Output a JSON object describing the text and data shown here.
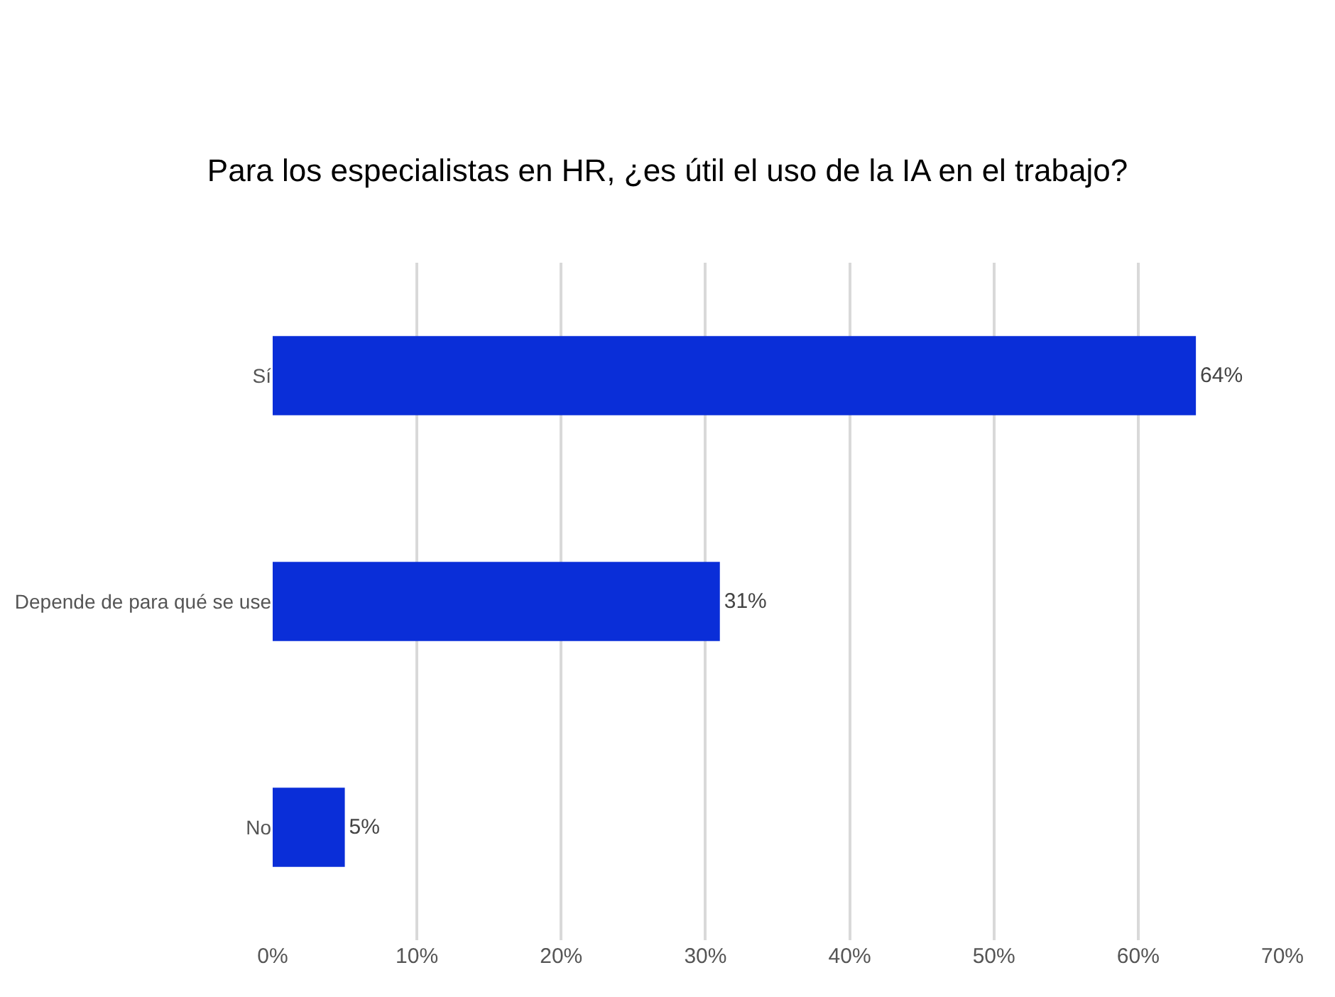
{
  "chart_data": {
    "type": "bar",
    "orientation": "horizontal",
    "title": "Para los especialistas en HR, ¿es útil el uso de la IA en el trabajo?",
    "categories": [
      "Sí",
      "Depende de para qué se use",
      "No"
    ],
    "values": [
      64,
      31,
      5
    ],
    "value_labels": [
      "64%",
      "31%",
      "5%"
    ],
    "color": "#0a2ed8",
    "xlim": [
      0,
      70
    ],
    "xticks": [
      {
        "value": 0,
        "label": "0%"
      },
      {
        "value": 10,
        "label": "10%"
      },
      {
        "value": 20,
        "label": "20%"
      },
      {
        "value": 30,
        "label": "30%"
      },
      {
        "value": 40,
        "label": "40%"
      },
      {
        "value": 50,
        "label": "50%"
      },
      {
        "value": 60,
        "label": "60%"
      },
      {
        "value": 70,
        "label": "70%"
      }
    ],
    "grid": "x",
    "legend": false
  }
}
